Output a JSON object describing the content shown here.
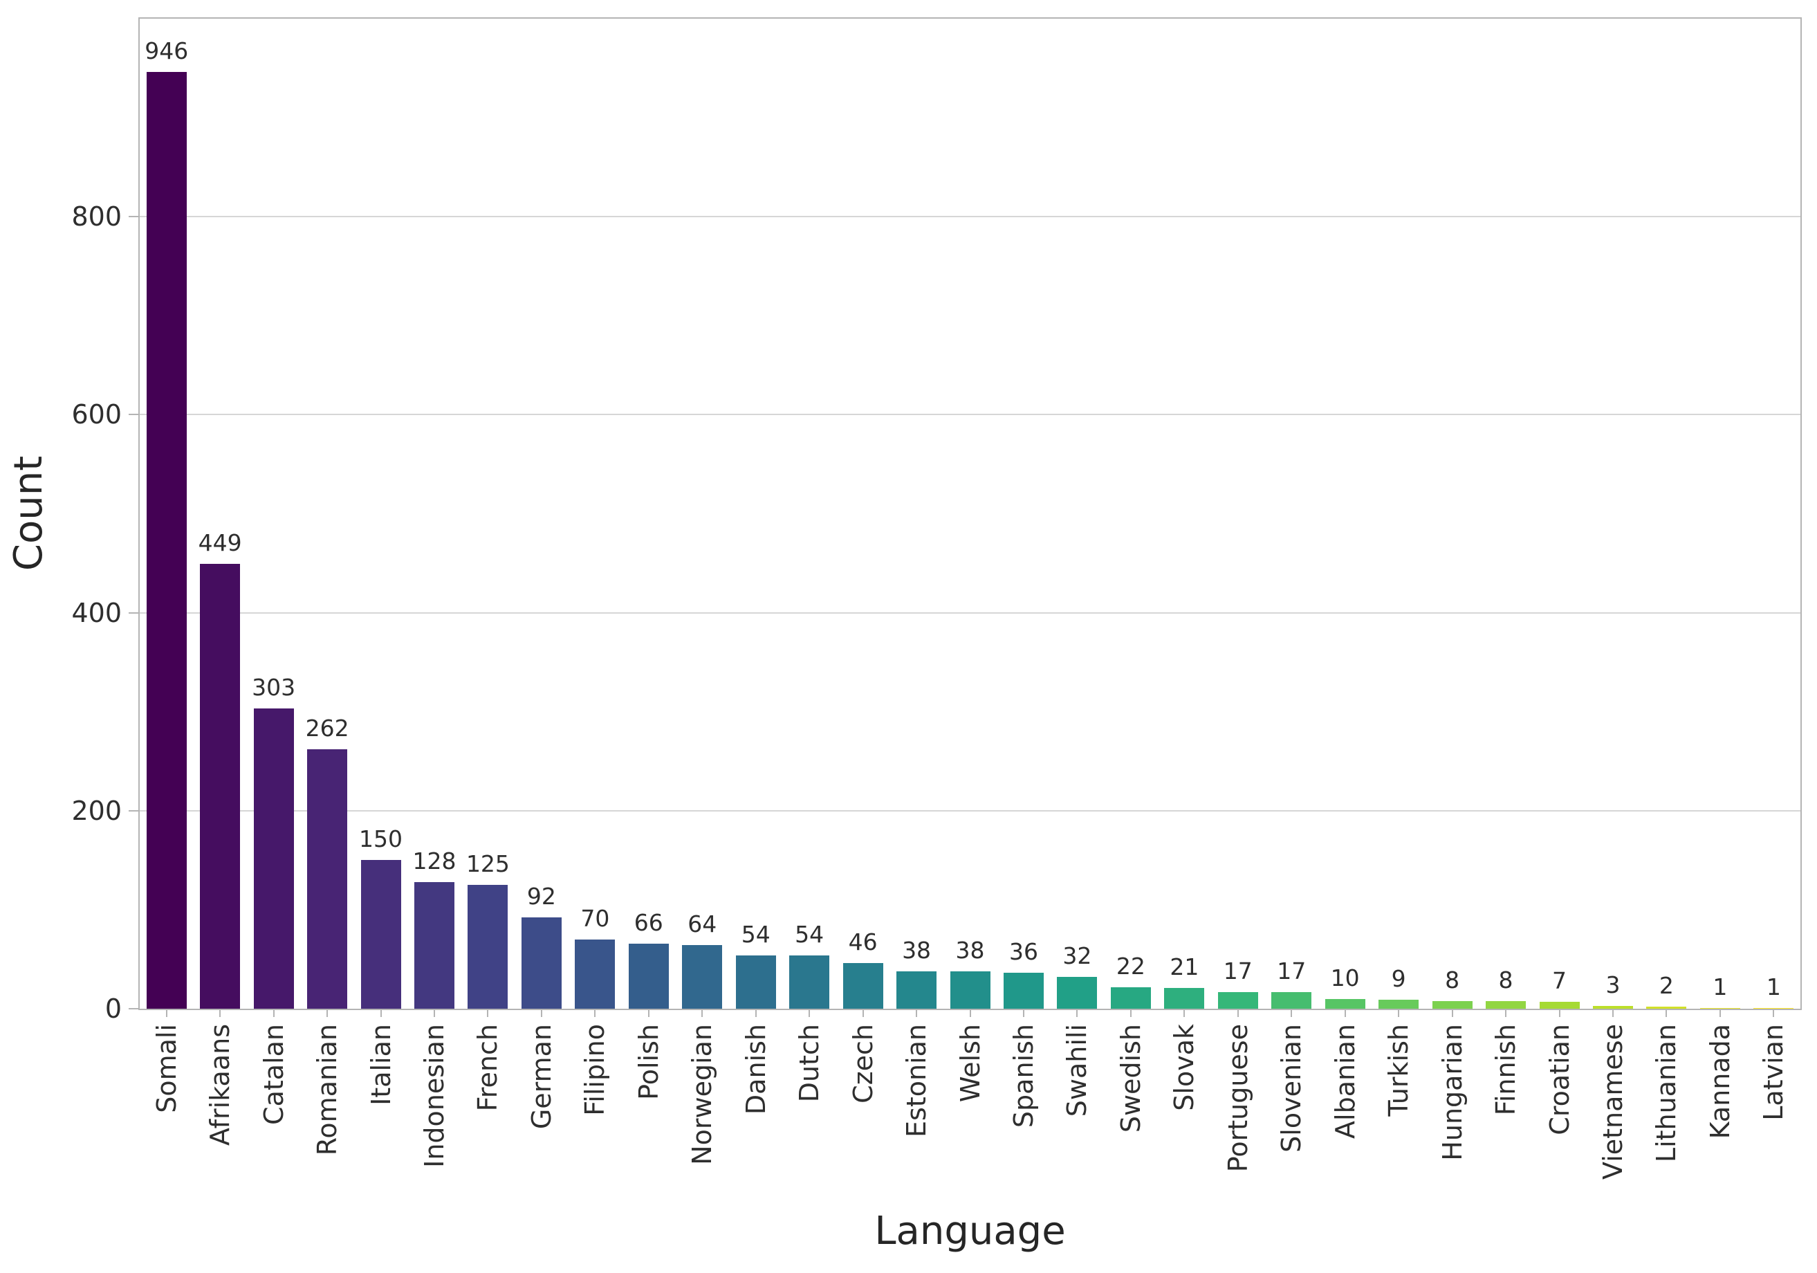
{
  "chart_data": {
    "type": "bar",
    "title": "",
    "xlabel": "Language",
    "ylabel": "Count",
    "categories": [
      "Somali",
      "Afrikaans",
      "Catalan",
      "Romanian",
      "Italian",
      "Indonesian",
      "French",
      "German",
      "Filipino",
      "Polish",
      "Norwegian",
      "Danish",
      "Dutch",
      "Czech",
      "Estonian",
      "Welsh",
      "Spanish",
      "Swahili",
      "Swedish",
      "Slovak",
      "Portuguese",
      "Slovenian",
      "Albanian",
      "Turkish",
      "Hungarian",
      "Finnish",
      "Croatian",
      "Vietnamese",
      "Lithuanian",
      "Kannada",
      "Latvian"
    ],
    "values": [
      946,
      449,
      303,
      262,
      150,
      128,
      125,
      92,
      70,
      66,
      64,
      54,
      54,
      46,
      38,
      38,
      36,
      32,
      22,
      21,
      17,
      17,
      10,
      9,
      8,
      8,
      7,
      3,
      2,
      1,
      1
    ],
    "bar_colors": [
      "#440154",
      "#450d5f",
      "#46186a",
      "#482474",
      "#462f7b",
      "#433880",
      "#404286",
      "#3d4c89",
      "#39558b",
      "#345e8c",
      "#31688e",
      "#2d6f8e",
      "#2a778e",
      "#277f8e",
      "#24878d",
      "#228f8b",
      "#20988a",
      "#21a087",
      "#27a882",
      "#2eaf7e",
      "#35b779",
      "#46bd6f",
      "#57c565",
      "#68cb5b",
      "#7cd14f",
      "#92d642",
      "#a6da34",
      "#bcdf2a",
      "#d1e128",
      "#e7e427",
      "#fde725"
    ],
    "ylim": [
      0,
      1000
    ],
    "yticks": [
      0,
      200,
      400,
      600,
      800
    ],
    "grid": "horizontal",
    "legend": "none",
    "value_labels": true
  }
}
